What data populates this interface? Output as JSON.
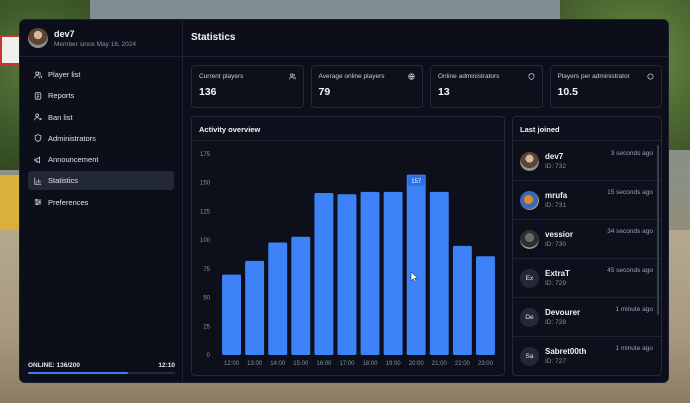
{
  "profile": {
    "name": "dev7",
    "member_since": "Member since May 16, 2024"
  },
  "sidebar": {
    "items": [
      {
        "label": "Player list",
        "icon": "users-icon",
        "active": false
      },
      {
        "label": "Reports",
        "icon": "report-icon",
        "active": false
      },
      {
        "label": "Ban list",
        "icon": "user-ban-icon",
        "active": false
      },
      {
        "label": "Administrators",
        "icon": "shield-icon",
        "active": false
      },
      {
        "label": "Announcement",
        "icon": "megaphone-icon",
        "active": false
      },
      {
        "label": "Statistics",
        "icon": "bar-chart-icon",
        "active": true
      },
      {
        "label": "Preferences",
        "icon": "sliders-icon",
        "active": false
      }
    ],
    "online_label": "ONLINE: 136/200",
    "online_fraction": 0.68,
    "clock": "12:10"
  },
  "header": {
    "title": "Statistics"
  },
  "stats": [
    {
      "label": "Current players",
      "value": "136",
      "icon": "users-icon"
    },
    {
      "label": "Average online players",
      "value": "79",
      "icon": "globe-icon"
    },
    {
      "label": "Online administrators",
      "value": "13",
      "icon": "shield-icon"
    },
    {
      "label": "Players per administrator",
      "value": "10.5",
      "icon": "circle-icon"
    }
  ],
  "activity": {
    "title": "Activity overview"
  },
  "chart_data": {
    "type": "bar",
    "categories": [
      "12:00",
      "13:00",
      "14:00",
      "15:00",
      "16:00",
      "17:00",
      "18:00",
      "19:00",
      "20:00",
      "21:00",
      "22:00",
      "23:00"
    ],
    "values": [
      70,
      82,
      98,
      103,
      141,
      140,
      142,
      142,
      157,
      142,
      95,
      86
    ],
    "ylim": [
      0,
      175
    ],
    "yticks": [
      0,
      25,
      50,
      75,
      100,
      125,
      150,
      175
    ],
    "highlight_index": 8,
    "highlight_label": "157",
    "bar_color": "#3d82f6",
    "grid": false
  },
  "last_joined": {
    "title": "Last joined",
    "items": [
      {
        "name": "dev7",
        "id": "ID: 732",
        "time": "3 seconds ago",
        "avatar": "photo1",
        "initials": ""
      },
      {
        "name": "mrufa",
        "id": "ID: 731",
        "time": "15 seconds ago",
        "avatar": "photo2",
        "initials": ""
      },
      {
        "name": "vessior",
        "id": "ID: 730",
        "time": "34 seconds ago",
        "avatar": "photo3",
        "initials": ""
      },
      {
        "name": "ExtraT",
        "id": "ID: 729",
        "time": "45 seconds ago",
        "avatar": "initials",
        "initials": "Ex"
      },
      {
        "name": "Devourer",
        "id": "ID: 728",
        "time": "1 minute ago",
        "avatar": "initials",
        "initials": "De"
      },
      {
        "name": "Sabret00th",
        "id": "ID: 727",
        "time": "1 minute ago",
        "avatar": "initials",
        "initials": "Sa"
      }
    ]
  }
}
